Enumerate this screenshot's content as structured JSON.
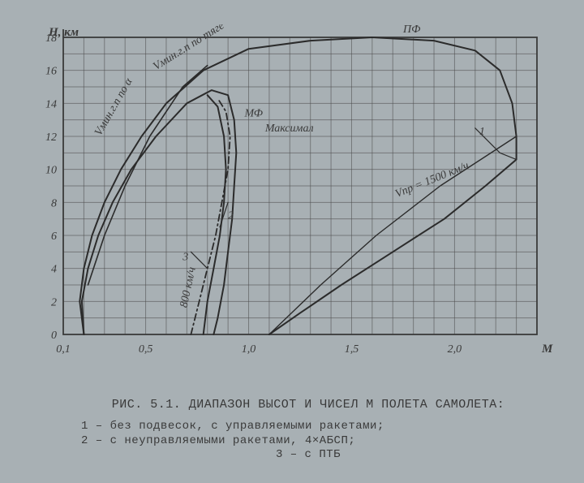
{
  "chart": {
    "type": "line",
    "background_color": "#a8b0b4",
    "paper_tone": "#a8b0b4",
    "grid_color": "#4a4a4a",
    "grid_width": 1,
    "border_color": "#3a3a3a",
    "curve_color": "#2b2b2b",
    "curve_width": 2,
    "xlabel": "M",
    "ylabel": "H, км",
    "xlim": [
      0.1,
      2.4
    ],
    "ylim": [
      0,
      18
    ],
    "xticks": [
      {
        "pos": 0.1,
        "label": "0,1"
      },
      {
        "pos": 0.5,
        "label": "0,5"
      },
      {
        "pos": 1.0,
        "label": "1,0"
      },
      {
        "pos": 1.5,
        "label": "1,5"
      },
      {
        "pos": 2.0,
        "label": "2,0"
      }
    ],
    "yticks": [
      0,
      2,
      4,
      6,
      8,
      10,
      12,
      14,
      16,
      18
    ],
    "xgrid_step": 0.1,
    "ygrid_step": 1,
    "label_fontsize_axis": 15,
    "label_fontsize_tick": 14,
    "annotations": [
      {
        "key": "pf",
        "text": "ПФ",
        "m": 1.75,
        "h": 18.3,
        "rot": 0,
        "style": "italic"
      },
      {
        "key": "mf",
        "text": "МФ",
        "m": 0.98,
        "h": 13.2,
        "rot": 0,
        "style": "italic"
      },
      {
        "key": "maximal",
        "text": "Максимал",
        "m": 1.08,
        "h": 12.3,
        "rot": 0,
        "style": "italic"
      },
      {
        "key": "vmin_alpha",
        "text": "Vмин.г.п по α",
        "m": 0.28,
        "h": 12.0,
        "rot": -60,
        "style": "italic"
      },
      {
        "key": "vmin_tyage",
        "text": "Vмин.г.п по тяге",
        "m": 0.55,
        "h": 16.0,
        "rot": -32,
        "style": "italic"
      },
      {
        "key": "v800",
        "text": "800 км/ч",
        "m": 0.7,
        "h": 1.6,
        "rot": -78,
        "style": "italic"
      },
      {
        "key": "vpr1500",
        "text": "Vпр = 1500 км/ч",
        "m": 1.72,
        "h": 8.3,
        "rot": -22,
        "style": "italic"
      },
      {
        "key": "n1",
        "text": "1",
        "m": 2.12,
        "h": 12.1,
        "rot": 0,
        "style": "italic"
      },
      {
        "key": "n2",
        "text": "2",
        "m": 0.9,
        "h": 7.0,
        "rot": 0,
        "style": "italic"
      },
      {
        "key": "n3",
        "text": "3",
        "m": 0.68,
        "h": 4.5,
        "rot": 0,
        "style": "italic"
      }
    ],
    "curves": {
      "envelope_1": {
        "style": "solid",
        "width": 2,
        "color": "#2b2b2b",
        "points": [
          [
            0.2,
            0
          ],
          [
            0.18,
            2
          ],
          [
            0.2,
            4
          ],
          [
            0.24,
            6
          ],
          [
            0.3,
            8
          ],
          [
            0.38,
            10
          ],
          [
            0.48,
            12
          ],
          [
            0.6,
            14
          ],
          [
            0.78,
            16
          ],
          [
            1.0,
            17.3
          ],
          [
            1.3,
            17.8
          ],
          [
            1.6,
            18.0
          ],
          [
            1.9,
            17.8
          ],
          [
            2.1,
            17.2
          ],
          [
            2.22,
            16.0
          ],
          [
            2.28,
            14.0
          ],
          [
            2.3,
            12.0
          ],
          [
            2.3,
            10.6
          ],
          [
            2.15,
            9.0
          ],
          [
            1.95,
            7.0
          ],
          [
            1.7,
            5.0
          ],
          [
            1.45,
            3.0
          ],
          [
            1.25,
            1.3
          ],
          [
            1.1,
            0
          ]
        ]
      },
      "envelope_mf": {
        "style": "solid",
        "width": 2,
        "color": "#2b2b2b",
        "points": [
          [
            0.2,
            0
          ],
          [
            0.19,
            2
          ],
          [
            0.22,
            4
          ],
          [
            0.27,
            6
          ],
          [
            0.34,
            8
          ],
          [
            0.43,
            10
          ],
          [
            0.55,
            12
          ],
          [
            0.7,
            14
          ],
          [
            0.82,
            14.8
          ],
          [
            0.9,
            14.5
          ],
          [
            0.93,
            13
          ],
          [
            0.94,
            11
          ],
          [
            0.93,
            9
          ],
          [
            0.92,
            7
          ],
          [
            0.9,
            5
          ],
          [
            0.88,
            3
          ],
          [
            0.85,
            1
          ],
          [
            0.83,
            0
          ]
        ]
      },
      "curve_2": {
        "style": "solid",
        "width": 2,
        "color": "#2b2b2b",
        "points": [
          [
            0.78,
            0
          ],
          [
            0.8,
            2
          ],
          [
            0.83,
            4
          ],
          [
            0.86,
            6
          ],
          [
            0.88,
            8
          ],
          [
            0.89,
            10
          ],
          [
            0.88,
            12
          ],
          [
            0.85,
            13.8
          ],
          [
            0.8,
            14.5
          ]
        ]
      },
      "curve_3": {
        "style": "dashdot",
        "width": 1.8,
        "color": "#2b2b2b",
        "points": [
          [
            0.72,
            0
          ],
          [
            0.76,
            2
          ],
          [
            0.8,
            4
          ],
          [
            0.84,
            6
          ],
          [
            0.87,
            8
          ],
          [
            0.9,
            10
          ],
          [
            0.91,
            12
          ],
          [
            0.89,
            13.5
          ],
          [
            0.85,
            14.3
          ]
        ]
      },
      "vmin_tyage_line": {
        "style": "solid",
        "width": 1.6,
        "color": "#2b2b2b",
        "points": [
          [
            0.22,
            3
          ],
          [
            0.3,
            6
          ],
          [
            0.4,
            9
          ],
          [
            0.52,
            12
          ],
          [
            0.68,
            15
          ],
          [
            0.8,
            16.3
          ]
        ]
      },
      "vpr_line": {
        "style": "solid",
        "width": 1.4,
        "color": "#2b2b2b",
        "points": [
          [
            1.1,
            0
          ],
          [
            1.35,
            3
          ],
          [
            1.62,
            6
          ],
          [
            1.93,
            9
          ],
          [
            2.3,
            12.0
          ]
        ]
      },
      "callout_1": {
        "style": "solid",
        "width": 1.2,
        "color": "#2b2b2b",
        "points": [
          [
            2.1,
            12.5
          ],
          [
            2.22,
            11.0
          ],
          [
            2.3,
            10.6
          ]
        ]
      },
      "callout_2": {
        "style": "solid",
        "width": 1.2,
        "color": "#2b2b2b",
        "points": [
          [
            0.9,
            8.0
          ],
          [
            0.86,
            6.5
          ]
        ]
      },
      "callout_3": {
        "style": "solid",
        "width": 1.2,
        "color": "#2b2b2b",
        "points": [
          [
            0.72,
            5.0
          ],
          [
            0.8,
            4.0
          ]
        ]
      }
    }
  },
  "caption": {
    "title": "РИС. 5.1. ДИАПАЗОН ВЫСОТ И ЧИСЕЛ М ПОЛЕТА САМОЛЕТА:",
    "lines": [
      "1 – без подвесок, с управляемыми ракетами;",
      "2 – с неуправляемыми ракетами, 4×АБСП;",
      "3 – с ПТБ"
    ]
  }
}
